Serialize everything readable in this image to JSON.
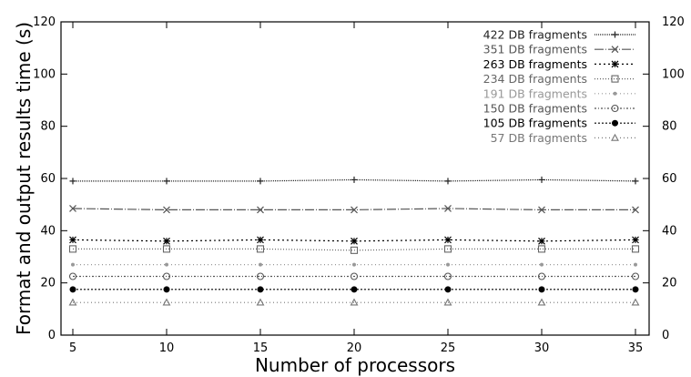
{
  "chart_data": {
    "type": "line",
    "title": "",
    "xlabel": "Number of processors",
    "ylabel": "Format and output results time (s)",
    "x": [
      5,
      10,
      15,
      20,
      25,
      30,
      35
    ],
    "xticks": [
      "5",
      "10",
      "15",
      "20",
      "25",
      "30",
      "35"
    ],
    "yticks": [
      "0",
      "20",
      "40",
      "60",
      "80",
      "100",
      "120"
    ],
    "xlim": [
      5,
      35
    ],
    "ylim": [
      0,
      120
    ],
    "grid": false,
    "legend_position": "top-right",
    "series": [
      {
        "name": "422 DB fragments",
        "values": [
          59,
          59,
          59,
          59.5,
          59,
          59.5,
          59
        ],
        "marker": "plus",
        "dash": "1,1",
        "color": "#222222"
      },
      {
        "name": "351 DB fragments",
        "values": [
          48.5,
          48,
          48,
          48,
          48.5,
          48,
          48
        ],
        "marker": "x",
        "dash": "10,2,1,2",
        "color": "#555555"
      },
      {
        "name": "263 DB fragments",
        "values": [
          36.5,
          36,
          36.5,
          36,
          36.5,
          36,
          36.5
        ],
        "marker": "star",
        "dash": "2,3",
        "color": "#000000"
      },
      {
        "name": "234 DB fragments",
        "values": [
          33,
          33,
          33,
          32.5,
          33,
          33,
          33
        ],
        "marker": "square",
        "dash": "1,2",
        "color": "#666666"
      },
      {
        "name": "191 DB fragments",
        "values": [
          27,
          27,
          27,
          27,
          27,
          27,
          27
        ],
        "marker": "dot-small",
        "dash": "1,3",
        "color": "#999999"
      },
      {
        "name": "150 DB fragments",
        "values": [
          22.5,
          22.5,
          22.5,
          22.5,
          22.5,
          22.5,
          22.5
        ],
        "marker": "circle",
        "dash": "2,2,1,2",
        "color": "#555555"
      },
      {
        "name": "105 DB fragments",
        "values": [
          17.5,
          17.5,
          17.5,
          17.5,
          17.5,
          17.5,
          17.5
        ],
        "marker": "filled-circle",
        "dash": "2,2",
        "color": "#000000"
      },
      {
        "name": "57 DB fragments",
        "values": [
          12.5,
          12.5,
          12.5,
          12.5,
          12.5,
          12.5,
          12.5
        ],
        "marker": "triangle",
        "dash": "1,3",
        "color": "#777777"
      }
    ]
  }
}
